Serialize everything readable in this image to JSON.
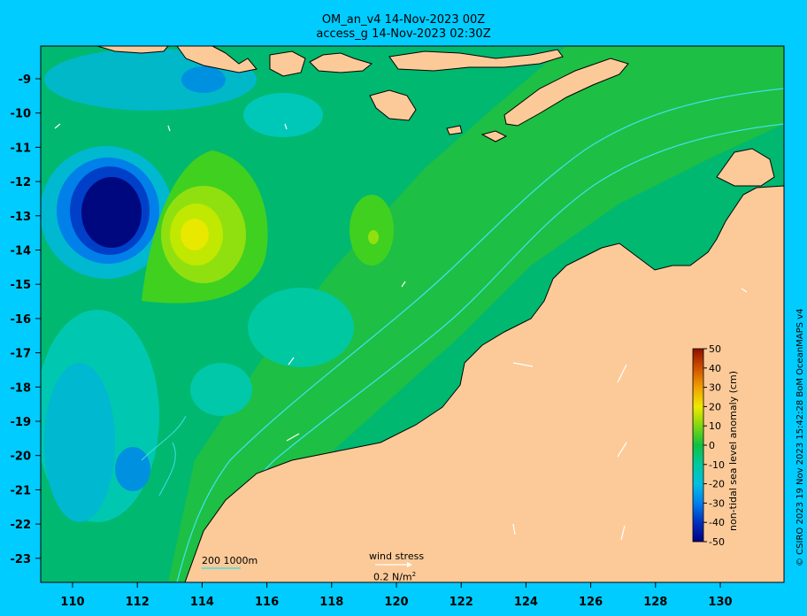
{
  "header": {
    "title_line1": "OM_an_v4  14-Nov-2023 00Z",
    "title_line2": "access_g 14-Nov-2023 02:30Z"
  },
  "axes": {
    "x_ticks": [
      "110",
      "112",
      "114",
      "116",
      "118",
      "120",
      "122",
      "124",
      "126",
      "128",
      "130"
    ],
    "y_ticks": [
      "-9",
      "-10",
      "-11",
      "-12",
      "-13",
      "-14",
      "-15",
      "-16",
      "-17",
      "-18",
      "-19",
      "-20",
      "-21",
      "-22",
      "-23"
    ]
  },
  "legend": {
    "bathymetry": "200  1000m",
    "wind_title": "wind stress",
    "wind_scale": "0.2 N/m",
    "wind_scale_sup": "2"
  },
  "colorbar": {
    "label": "non-tidal sea level anomaly (cm)",
    "ticks": [
      "50",
      "40",
      "30",
      "20",
      "10",
      "0",
      "-10",
      "-20",
      "-30",
      "-40",
      "-50"
    ],
    "colors": [
      "#000080",
      "#0020b0",
      "#0050e0",
      "#0090e8",
      "#00c0d8",
      "#00c8a0",
      "#10c060",
      "#20c020",
      "#60d010",
      "#b0e000",
      "#f0e800",
      "#f0c000",
      "#e89000",
      "#d06000",
      "#b03000",
      "#901000"
    ]
  },
  "credit": "© CSIRO 2023  19 Nov 2023 15:42:28 BoM OceanMAPS v4",
  "colors": {
    "background": "#00ccff",
    "land": "#fcca98",
    "ocean_base": "#00b870",
    "contour": "#40e0e8"
  }
}
